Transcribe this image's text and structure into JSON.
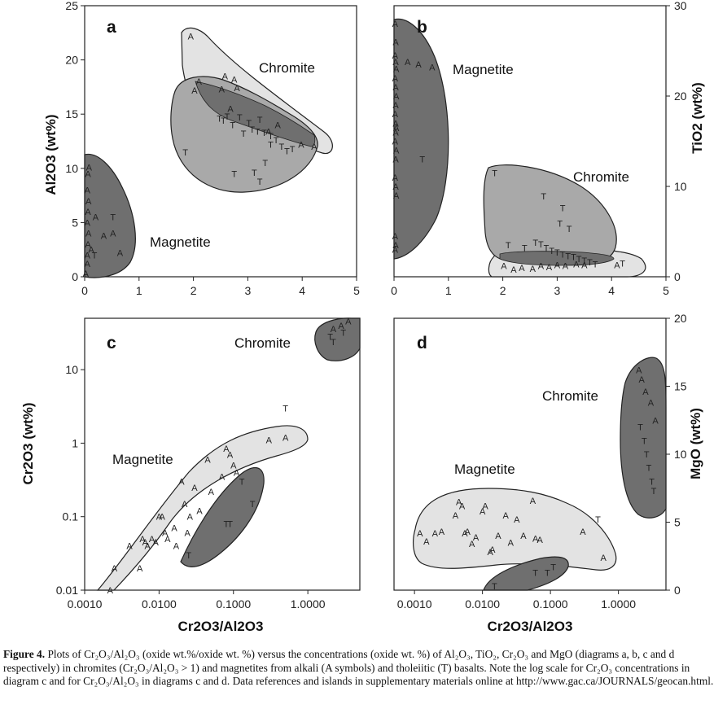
{
  "caption": {
    "label": "Figure 4.",
    "text": "Plots of Cr₂O₃/Al₂O₃ (oxide wt.%/oxide wt. %) versus the concentrations (oxide wt. %) of Al₂O₃, TiO₂, Cr₂O₃ and MgO (diagrams a, b, c and d respectively) in chromites (Cr₂O₃/Al₂O₃ > 1) and magnetites from alkali (A symbols) and tholeiitic (T) basalts. Note the log scale for Cr₂O₃ concentrations in diagram c and for Cr₂O₃/Al₂O₃ in diagrams c and d. Data references and islands in supplementary materials online at http://www.gac.ca/JOURNALS/geocan.html."
  },
  "colors": {
    "dark": "#6f6f6f",
    "mid": "#a9a9a9",
    "light": "#e3e3e3",
    "outline": "#222222"
  },
  "chart_data": [
    {
      "panel": "a",
      "type": "scatter",
      "xlabel": "",
      "ylabel": "Al2O3 (wt%)",
      "xlim": [
        0,
        5
      ],
      "ylim": [
        0,
        25
      ],
      "xticks": [
        "0",
        "1",
        "2",
        "3",
        "4",
        "5"
      ],
      "yticks": [
        "0",
        "5",
        "10",
        "15",
        "20",
        "25"
      ],
      "region_labels": [
        "Chromite",
        "Magnetite"
      ],
      "series": [
        {
          "name": "A",
          "points": [
            [
              0.02,
              0.3
            ],
            [
              0.05,
              1.2
            ],
            [
              0.05,
              2
            ],
            [
              0.06,
              3
            ],
            [
              0.07,
              4
            ],
            [
              0.05,
              5
            ],
            [
              0.06,
              6
            ],
            [
              0.07,
              7
            ],
            [
              0.05,
              8
            ],
            [
              0.06,
              9.5
            ],
            [
              0.08,
              10.1
            ],
            [
              0.2,
              5.5
            ],
            [
              0.35,
              3.8
            ],
            [
              0.52,
              4
            ],
            [
              0.12,
              2.5
            ],
            [
              0.65,
              2.2
            ],
            [
              1.95,
              22.2
            ],
            [
              2.02,
              17.2
            ],
            [
              2.1,
              18
            ],
            [
              2.52,
              17.3
            ],
            [
              2.58,
              18.5
            ],
            [
              2.75,
              18.2
            ],
            [
              2.8,
              17.4
            ],
            [
              2.68,
              15.5
            ],
            [
              3.55,
              14
            ],
            [
              3.38,
              13.4
            ],
            [
              4.22,
              12
            ],
            [
              3.98,
              12.2
            ]
          ]
        },
        {
          "name": "T",
          "points": [
            [
              0.52,
              5.5
            ],
            [
              0.18,
              2
            ],
            [
              1.85,
              11.5
            ],
            [
              2.48,
              14.6
            ],
            [
              2.55,
              14.4
            ],
            [
              2.62,
              14.8
            ],
            [
              2.72,
              14
            ],
            [
              2.85,
              14.7
            ],
            [
              2.92,
              13.2
            ],
            [
              3.02,
              14.2
            ],
            [
              3.08,
              13.6
            ],
            [
              3.18,
              13.4
            ],
            [
              3.22,
              14.5
            ],
            [
              3.3,
              13.3
            ],
            [
              3.42,
              13
            ],
            [
              3.52,
              12.6
            ],
            [
              3.62,
              12
            ],
            [
              3.72,
              11.6
            ],
            [
              3.82,
              11.8
            ],
            [
              2.75,
              9.5
            ],
            [
              3.12,
              9.6
            ],
            [
              3.22,
              8.8
            ],
            [
              3.42,
              12.2
            ],
            [
              3.32,
              10.5
            ]
          ]
        }
      ]
    },
    {
      "panel": "b",
      "type": "scatter",
      "xlabel": "",
      "ylabel": "TiO2 (wt%)",
      "xlim": [
        0,
        5
      ],
      "ylim": [
        0,
        30
      ],
      "xticks": [
        "0",
        "1",
        "2",
        "3",
        "4",
        "5"
      ],
      "yticks": [
        "0",
        "10",
        "20",
        "30"
      ],
      "region_labels": [
        "Magnetite",
        "Chromite"
      ],
      "series": [
        {
          "name": "A",
          "points": [
            [
              0.02,
              28
            ],
            [
              0.03,
              26
            ],
            [
              0.02,
              24.5
            ],
            [
              0.03,
              23.8
            ],
            [
              0.04,
              23
            ],
            [
              0.02,
              22
            ],
            [
              0.03,
              21
            ],
            [
              0.04,
              20
            ],
            [
              0.03,
              19
            ],
            [
              0.02,
              18
            ],
            [
              0.03,
              17
            ],
            [
              0.04,
              16.5
            ],
            [
              0.03,
              16
            ],
            [
              0.02,
              15
            ],
            [
              0.04,
              14
            ],
            [
              0.03,
              13
            ],
            [
              0.02,
              11
            ],
            [
              0.03,
              10
            ],
            [
              0.04,
              9
            ],
            [
              0.02,
              4.5
            ],
            [
              0.03,
              3.5
            ],
            [
              0.02,
              3
            ],
            [
              0.25,
              23.8
            ],
            [
              0.45,
              23.5
            ],
            [
              0.7,
              23.2
            ],
            [
              2.02,
              1.2
            ],
            [
              2.2,
              0.8
            ],
            [
              2.35,
              1
            ],
            [
              2.55,
              0.9
            ],
            [
              2.7,
              1.2
            ],
            [
              2.85,
              1.1
            ],
            [
              3.0,
              1.3
            ],
            [
              3.15,
              1.2
            ],
            [
              3.35,
              1.4
            ],
            [
              3.5,
              1.3
            ],
            [
              4.1,
              1.3
            ]
          ]
        },
        {
          "name": "T",
          "points": [
            [
              0.52,
              13
            ],
            [
              1.85,
              11.5
            ],
            [
              2.75,
              8.9
            ],
            [
              3.1,
              7.6
            ],
            [
              3.22,
              5.3
            ],
            [
              3.05,
              5.9
            ],
            [
              2.6,
              3.8
            ],
            [
              2.7,
              3.6
            ],
            [
              2.8,
              3.2
            ],
            [
              2.9,
              2.9
            ],
            [
              3.0,
              2.7
            ],
            [
              3.1,
              2.5
            ],
            [
              3.2,
              2.3
            ],
            [
              3.3,
              2.2
            ],
            [
              3.4,
              2.0
            ],
            [
              3.5,
              1.8
            ],
            [
              3.6,
              1.6
            ],
            [
              3.7,
              1.4
            ],
            [
              4.2,
              1.5
            ],
            [
              2.1,
              3.5
            ],
            [
              2.4,
              3.2
            ]
          ]
        }
      ]
    },
    {
      "panel": "c",
      "type": "scatter",
      "xlabel": "Cr2O3/Al2O3",
      "ylabel": "Cr2O3 (wt%)",
      "xscale": "log",
      "yscale": "log",
      "xlim": [
        0.001,
        5
      ],
      "ylim": [
        0.01,
        50
      ],
      "xticks": [
        "0.0010",
        "0.0100",
        "0.1000",
        "1.0000"
      ],
      "yticks": [
        "0.01",
        "0.1",
        "1",
        "10"
      ],
      "region_labels": [
        "Chromite",
        "Magnetite"
      ],
      "series": [
        {
          "name": "A",
          "points": [
            [
              0.0022,
              0.01
            ],
            [
              0.0025,
              0.02
            ],
            [
              0.004,
              0.04
            ],
            [
              0.0055,
              0.02
            ],
            [
              0.006,
              0.05
            ],
            [
              0.0065,
              0.045
            ],
            [
              0.007,
              0.04
            ],
            [
              0.008,
              0.05
            ],
            [
              0.009,
              0.045
            ],
            [
              0.01,
              0.1
            ],
            [
              0.011,
              0.1
            ],
            [
              0.012,
              0.06
            ],
            [
              0.013,
              0.05
            ],
            [
              0.016,
              0.07
            ],
            [
              0.017,
              0.04
            ],
            [
              0.02,
              0.3
            ],
            [
              0.022,
              0.15
            ],
            [
              0.024,
              0.06
            ],
            [
              0.026,
              0.1
            ],
            [
              0.03,
              0.25
            ],
            [
              0.035,
              0.12
            ],
            [
              0.045,
              0.6
            ],
            [
              0.05,
              0.22
            ],
            [
              0.07,
              0.35
            ],
            [
              0.08,
              0.85
            ],
            [
              0.09,
              0.7
            ],
            [
              0.1,
              0.5
            ],
            [
              0.11,
              0.4
            ],
            [
              0.3,
              1.1
            ],
            [
              0.5,
              1.2
            ],
            [
              2.2,
              36
            ],
            [
              2.8,
              40
            ],
            [
              3.5,
              46
            ]
          ]
        },
        {
          "name": "T",
          "points": [
            [
              0.025,
              0.03
            ],
            [
              0.08,
              0.08
            ],
            [
              0.09,
              0.08
            ],
            [
              0.13,
              0.3
            ],
            [
              0.18,
              0.15
            ],
            [
              0.5,
              3
            ],
            [
              2.2,
              24
            ],
            [
              2.0,
              28
            ],
            [
              3.0,
              32
            ]
          ]
        }
      ]
    },
    {
      "panel": "d",
      "type": "scatter",
      "xlabel": "Cr2O3/Al2O3",
      "ylabel": "MgO (wt%)",
      "xscale": "log",
      "xlim": [
        0.0005,
        5
      ],
      "ylim": [
        0,
        20
      ],
      "xticks": [
        "0.0010",
        "0.0100",
        "0.1000",
        "1.0000"
      ],
      "yticks": [
        "0",
        "5",
        "10",
        "15",
        "20"
      ],
      "region_labels": [
        "Chromite",
        "Magnetite"
      ],
      "series": [
        {
          "name": "A",
          "points": [
            [
              0.0012,
              4.2
            ],
            [
              0.0015,
              3.6
            ],
            [
              0.002,
              4.2
            ],
            [
              0.0025,
              4.3
            ],
            [
              0.004,
              5.5
            ],
            [
              0.0045,
              6.5
            ],
            [
              0.005,
              6.2
            ],
            [
              0.0055,
              4.2
            ],
            [
              0.006,
              4.3
            ],
            [
              0.007,
              3.4
            ],
            [
              0.008,
              3.9
            ],
            [
              0.01,
              5.8
            ],
            [
              0.011,
              6.2
            ],
            [
              0.013,
              2.8
            ],
            [
              0.014,
              3.0
            ],
            [
              0.017,
              4.0
            ],
            [
              0.022,
              5.5
            ],
            [
              0.026,
              3.5
            ],
            [
              0.032,
              5.2
            ],
            [
              0.04,
              4.0
            ],
            [
              0.055,
              6.6
            ],
            [
              0.06,
              3.8
            ],
            [
              0.07,
              3.7
            ],
            [
              0.3,
              4.3
            ],
            [
              0.6,
              2.4
            ],
            [
              2.0,
              16.2
            ],
            [
              2.2,
              15.5
            ],
            [
              2.5,
              14.6
            ],
            [
              3.0,
              13.8
            ],
            [
              3.5,
              12.5
            ]
          ]
        },
        {
          "name": "T",
          "points": [
            [
              0.015,
              0.3
            ],
            [
              0.06,
              1.3
            ],
            [
              0.09,
              1.3
            ],
            [
              0.11,
              1.7
            ],
            [
              0.5,
              5.2
            ],
            [
              2.1,
              12
            ],
            [
              2.4,
              11
            ],
            [
              2.6,
              10
            ],
            [
              2.8,
              9
            ],
            [
              3.1,
              8
            ],
            [
              3.3,
              7.3
            ]
          ]
        }
      ]
    }
  ]
}
